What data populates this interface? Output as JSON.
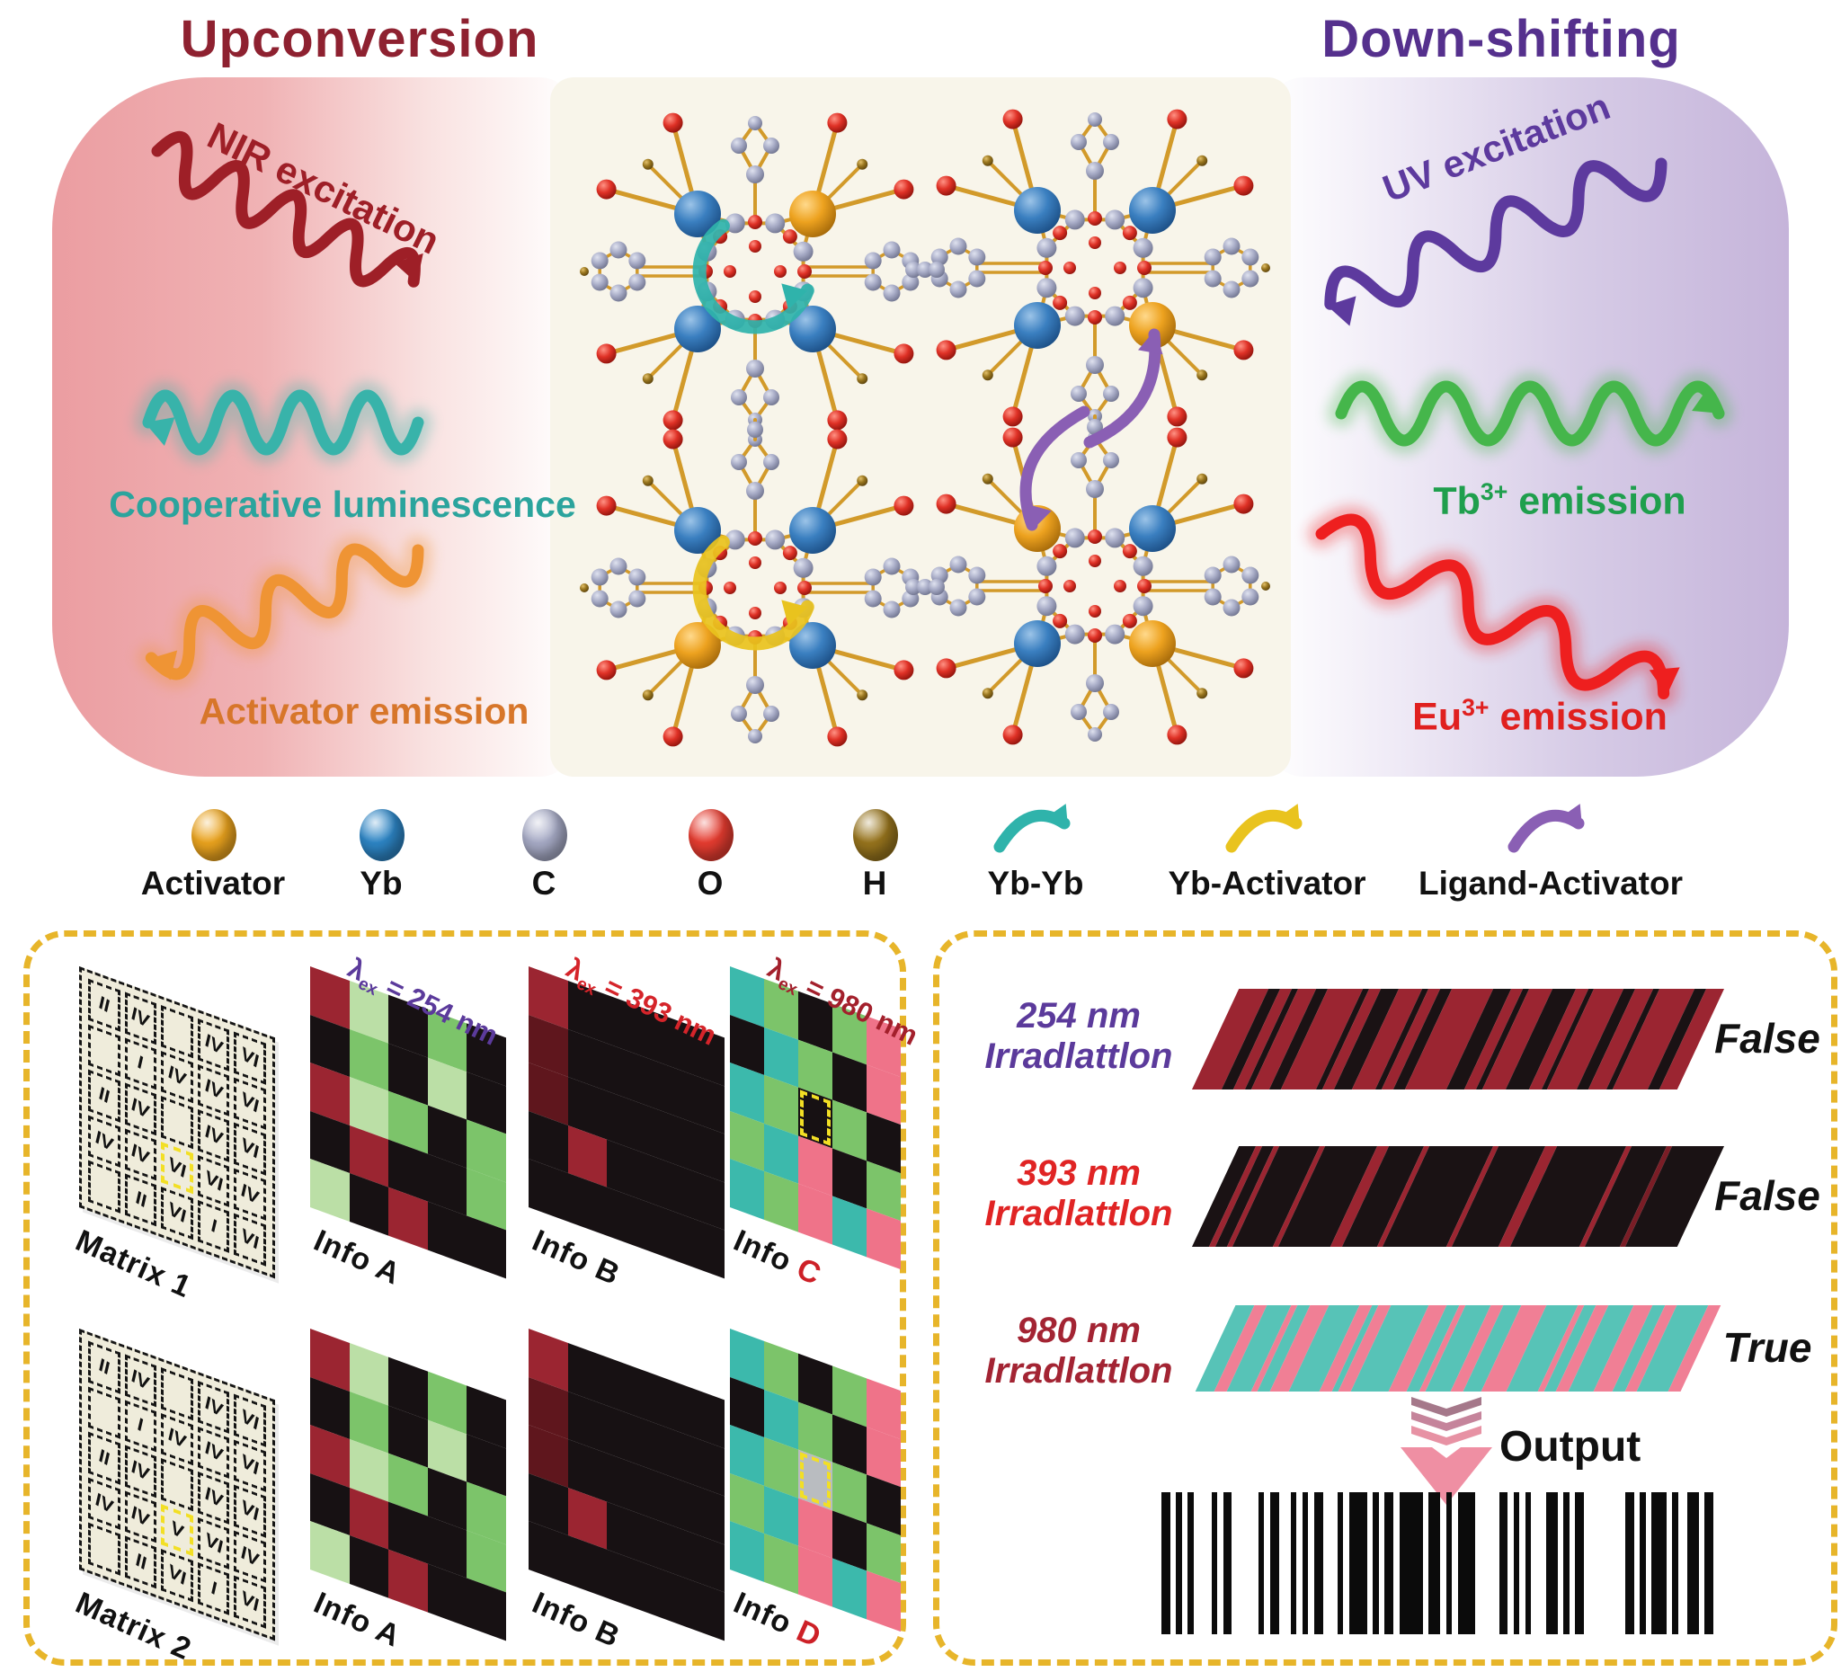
{
  "header": {
    "left_title": "Upconversion",
    "right_title": "Down-shifting"
  },
  "hero": {
    "nir_label": "NIR excitation",
    "cooperative_label": "Cooperative luminescence",
    "activator_label": "Activator emission",
    "uv_label": "UV excitation",
    "tb_base": "Tb",
    "tb_sup": "3+",
    "tb_suffix": " emission",
    "eu_base": "Eu",
    "eu_sup": "3+",
    "eu_suffix": " emission"
  },
  "palette": {
    "upconversion_title": "#8e2130",
    "downshift_title": "#55308d",
    "nir": "#9e1f27",
    "cooperative": "#38b3aa",
    "cooperative_text": "#2ba49d",
    "activator_emission": "#ef9434",
    "activator_text": "#d7762a",
    "uv": "#5d3a9e",
    "tb": "#45b64b",
    "tb_text": "#1f9f4d",
    "eu": "#ee1f1f",
    "eu_text": "#e0201f",
    "panel_border": "#e7b52a",
    "bond_gold": "#d29a2a",
    "sphere_activator": "#eaa31e",
    "sphere_yb": "#2d85c5",
    "sphere_c": "#a7abc6",
    "sphere_o": "#e63c30",
    "sphere_h": "#97741d",
    "arrow_ybyb": "#2fb3ab",
    "arrow_ybact": "#e9c31e",
    "arrow_ligact": "#8a5fb4",
    "matrix_bg": "#efecdb",
    "highlight_yellow": "#f2df25",
    "cell_R": "#9b2531",
    "cell_r": "#5f161d",
    "cell_K": "#171113",
    "cell_G": "#7cc46a",
    "cell_g": "#bbdfa6",
    "cell_T": "#3cb9ac",
    "cell_P": "#ef7389",
    "cell_W": "#b9bcc0",
    "stripe_r": "#9b2531",
    "stripe_d": "#7a1d26",
    "stripe_k": "#1a1214",
    "stripe_t": "#57c3b7",
    "stripe_p": "#f07f95",
    "output_arrow": "#ef8fa3",
    "info_letter_red": "#cd2027"
  },
  "legend": {
    "spheres": [
      {
        "label": "Activator",
        "color": "#eaa31e"
      },
      {
        "label": "Yb",
        "color": "#2d85c5"
      },
      {
        "label": "C",
        "color": "#a7abc6"
      },
      {
        "label": "O",
        "color": "#e63c30"
      },
      {
        "label": "H",
        "color": "#97741d"
      }
    ],
    "arrows": [
      {
        "label": "Yb-Yb",
        "color": "#2fb3ab"
      },
      {
        "label": "Yb-Activator",
        "color": "#e9c31e"
      },
      {
        "label": "Ligand-Activator",
        "color": "#8a5fb4"
      }
    ]
  },
  "molecule": {
    "cluster_corner_atoms": [
      [
        "Yb",
        "Activator",
        "Yb",
        "Yb"
      ],
      [
        "Yb",
        "Yb",
        "Yb",
        "Activator"
      ],
      [
        "Yb",
        "Yb",
        "Activator",
        "Yb"
      ],
      [
        "Activator",
        "Yb",
        "Yb",
        "Activator"
      ]
    ],
    "energy_transfer_arrows": [
      "Yb-Yb",
      "Yb-Activator",
      "Ligand-Activator"
    ]
  },
  "decoding_panel": {
    "lambda_sym": "λ",
    "lambda_sub": "ex",
    "rows": [
      {
        "matrix": {
          "label": "Matrix 1",
          "cells": [
            [
              "II",
              "IV",
              "",
              "IV",
              "VI"
            ],
            [
              "",
              "I",
              "IV",
              "IV",
              "VI"
            ],
            [
              "II",
              "IV",
              "",
              "IV",
              "VI"
            ],
            [
              "IV",
              "IV",
              "VI",
              "VI",
              "IV"
            ],
            [
              "",
              "II",
              "VI",
              "I",
              "VI"
            ]
          ],
          "highlight": {
            "r": 3,
            "c": 2
          }
        },
        "infos": [
          {
            "letter": "A",
            "letter_red": false,
            "lambda_text": "= 254 nm",
            "lambda_color": "#5b3a9b",
            "grid": [
              [
                "R",
                "g",
                "K",
                "G",
                "K"
              ],
              [
                "K",
                "G",
                "K",
                "g",
                "K"
              ],
              [
                "R",
                "g",
                "G",
                "K",
                "G"
              ],
              [
                "K",
                "R",
                "K",
                "K",
                "G"
              ],
              [
                "g",
                "K",
                "R",
                "K",
                "K"
              ]
            ],
            "selected": null
          },
          {
            "letter": "B",
            "letter_red": false,
            "lambda_text": "= 393 nm",
            "lambda_color": "#d5242a",
            "grid": [
              [
                "R",
                "K",
                "K",
                "K",
                "K"
              ],
              [
                "r",
                "K",
                "K",
                "K",
                "K"
              ],
              [
                "r",
                "K",
                "K",
                "K",
                "K"
              ],
              [
                "K",
                "R",
                "K",
                "K",
                "K"
              ],
              [
                "K",
                "K",
                "K",
                "K",
                "K"
              ]
            ],
            "selected": null
          },
          {
            "letter": "C",
            "letter_red": true,
            "lambda_text": "= 980 nm",
            "lambda_color": "#a3202c",
            "grid": [
              [
                "T",
                "G",
                "K",
                "G",
                "P"
              ],
              [
                "K",
                "T",
                "G",
                "K",
                "P"
              ],
              [
                "T",
                "G",
                "K",
                "G",
                "K"
              ],
              [
                "G",
                "T",
                "P",
                "K",
                "G"
              ],
              [
                "T",
                "G",
                "P",
                "T",
                "P"
              ]
            ],
            "selected": {
              "r": 2,
              "c": 2
            }
          }
        ]
      },
      {
        "matrix": {
          "label": "Matrix 2",
          "cells": [
            [
              "II",
              "IV",
              "",
              "IV",
              "VI"
            ],
            [
              "",
              "I",
              "IV",
              "IV",
              "VI"
            ],
            [
              "II",
              "IV",
              "",
              "IV",
              "VI"
            ],
            [
              "IV",
              "IV",
              "V",
              "VI",
              "IV"
            ],
            [
              "",
              "II",
              "VI",
              "I",
              "VI"
            ]
          ],
          "highlight": {
            "r": 3,
            "c": 2
          }
        },
        "infos": [
          {
            "letter": "A",
            "letter_red": false,
            "lambda_text": null,
            "lambda_color": null,
            "grid": [
              [
                "R",
                "g",
                "K",
                "G",
                "K"
              ],
              [
                "K",
                "G",
                "K",
                "g",
                "K"
              ],
              [
                "R",
                "g",
                "G",
                "K",
                "G"
              ],
              [
                "K",
                "R",
                "K",
                "K",
                "G"
              ],
              [
                "g",
                "K",
                "R",
                "K",
                "K"
              ]
            ],
            "selected": null
          },
          {
            "letter": "B",
            "letter_red": false,
            "lambda_text": null,
            "lambda_color": null,
            "grid": [
              [
                "R",
                "K",
                "K",
                "K",
                "K"
              ],
              [
                "r",
                "K",
                "K",
                "K",
                "K"
              ],
              [
                "r",
                "K",
                "K",
                "K",
                "K"
              ],
              [
                "K",
                "R",
                "K",
                "K",
                "K"
              ],
              [
                "K",
                "K",
                "K",
                "K",
                "K"
              ]
            ],
            "selected": null
          },
          {
            "letter": "D",
            "letter_red": true,
            "lambda_text": null,
            "lambda_color": null,
            "grid": [
              [
                "T",
                "G",
                "K",
                "G",
                "P"
              ],
              [
                "K",
                "T",
                "G",
                "K",
                "P"
              ],
              [
                "T",
                "G",
                "W",
                "G",
                "K"
              ],
              [
                "G",
                "T",
                "P",
                "K",
                "G"
              ],
              [
                "T",
                "G",
                "P",
                "T",
                "P"
              ]
            ],
            "selected": {
              "r": 2,
              "c": 2
            }
          }
        ]
      }
    ],
    "info_label_base": "Info "
  },
  "readout_panel": {
    "rows": [
      {
        "wavelength": "254 nm",
        "word": "Irradlattlon",
        "label_color": "#5b3a9b",
        "result": "False"
      },
      {
        "wavelength": "393 nm",
        "word": "Irradlattlon",
        "label_color": "#e02424",
        "result": "False"
      },
      {
        "wavelength": "980 nm",
        "word": "Irradlattlon",
        "label_color": "#a32433",
        "result": "True"
      }
    ],
    "output_label": "Output",
    "bands": {
      "band254": [
        [
          5,
          "r"
        ],
        [
          2,
          "k"
        ],
        [
          2,
          "r"
        ],
        [
          1,
          "k"
        ],
        [
          3,
          "r"
        ],
        [
          2,
          "k"
        ],
        [
          6,
          "r"
        ],
        [
          1,
          "k"
        ],
        [
          2,
          "r"
        ],
        [
          3,
          "k"
        ],
        [
          4,
          "r"
        ],
        [
          1,
          "k"
        ],
        [
          2,
          "r"
        ],
        [
          2,
          "k"
        ],
        [
          7,
          "r"
        ],
        [
          3,
          "k"
        ],
        [
          2,
          "r"
        ],
        [
          1,
          "k"
        ],
        [
          4,
          "r"
        ],
        [
          4,
          "k"
        ],
        [
          2,
          "r"
        ],
        [
          1,
          "k"
        ],
        [
          5,
          "r"
        ],
        [
          2,
          "k"
        ],
        [
          3,
          "r"
        ],
        [
          1,
          "k"
        ],
        [
          6,
          "r"
        ],
        [
          2,
          "k"
        ],
        [
          3,
          "r"
        ]
      ],
      "band393": [
        [
          3,
          "k"
        ],
        [
          1,
          "r"
        ],
        [
          2,
          "k"
        ],
        [
          1,
          "r"
        ],
        [
          7,
          "k"
        ],
        [
          1,
          "r"
        ],
        [
          9,
          "k"
        ],
        [
          2,
          "r"
        ],
        [
          6,
          "k"
        ],
        [
          1,
          "r"
        ],
        [
          11,
          "k"
        ],
        [
          1,
          "r"
        ],
        [
          8,
          "k"
        ],
        [
          2,
          "r"
        ],
        [
          12,
          "k"
        ],
        [
          1,
          "r"
        ],
        [
          6,
          "k"
        ],
        [
          1,
          "d"
        ],
        [
          9,
          "k"
        ]
      ],
      "band980": [
        [
          3,
          "t"
        ],
        [
          2,
          "p"
        ],
        [
          4,
          "t"
        ],
        [
          1,
          "p"
        ],
        [
          2,
          "t"
        ],
        [
          3,
          "p"
        ],
        [
          5,
          "t"
        ],
        [
          2,
          "p"
        ],
        [
          1,
          "t"
        ],
        [
          2,
          "p"
        ],
        [
          6,
          "t"
        ],
        [
          3,
          "p"
        ],
        [
          2,
          "t"
        ],
        [
          1,
          "p"
        ],
        [
          4,
          "t"
        ],
        [
          2,
          "p"
        ],
        [
          3,
          "t"
        ],
        [
          4,
          "p"
        ],
        [
          5,
          "t"
        ],
        [
          1,
          "p"
        ],
        [
          2,
          "t"
        ],
        [
          2,
          "p"
        ],
        [
          4,
          "t"
        ],
        [
          3,
          "p"
        ],
        [
          2,
          "t"
        ],
        [
          2,
          "p"
        ],
        [
          5,
          "t"
        ],
        [
          2,
          "p"
        ]
      ]
    },
    "barcode": [
      3,
      2,
      2,
      2,
      2,
      6,
      2,
      2,
      3,
      9,
      2,
      2,
      3,
      4,
      2,
      2,
      2,
      2,
      3,
      5,
      2,
      2,
      6,
      2,
      2,
      2,
      3,
      2,
      8,
      2,
      4,
      2,
      2,
      2,
      6,
      8,
      3,
      2,
      2,
      2,
      2,
      5,
      4,
      2,
      2,
      2,
      3,
      14,
      3,
      2,
      2,
      2,
      5,
      2,
      2,
      3,
      4,
      2,
      3
    ]
  }
}
